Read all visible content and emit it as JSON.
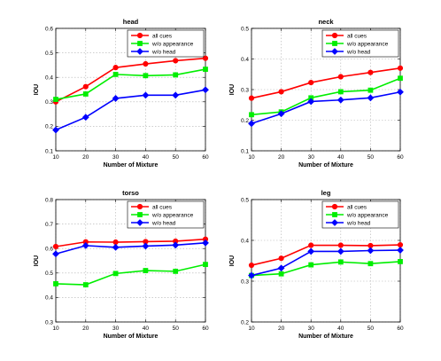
{
  "chart_data": [
    {
      "type": "line",
      "title": "head",
      "xlabel": "Number of Mixture",
      "ylabel": "IOU",
      "x": [
        10,
        20,
        30,
        40,
        50,
        60
      ],
      "xlim": [
        10,
        60
      ],
      "ylim": [
        0.1,
        0.6
      ],
      "xticks": [
        "10",
        "20",
        "30",
        "40",
        "50",
        "60"
      ],
      "yticks": [
        "0.1",
        "0.2",
        "0.3",
        "0.4",
        "0.5",
        "0.6"
      ],
      "grid": true,
      "legend_position": "top-right",
      "series": [
        {
          "name": "all cues",
          "color": "#ff0000",
          "marker": "circle",
          "values": [
            0.3,
            0.362,
            0.44,
            0.455,
            0.468,
            0.478
          ]
        },
        {
          "name": "w/o appearance",
          "color": "#00ee00",
          "marker": "square",
          "values": [
            0.31,
            0.332,
            0.412,
            0.407,
            0.41,
            0.433
          ]
        },
        {
          "name": "w/o head",
          "color": "#0000ff",
          "marker": "diamond",
          "values": [
            0.185,
            0.237,
            0.314,
            0.327,
            0.327,
            0.349
          ]
        }
      ]
    },
    {
      "type": "line",
      "title": "neck",
      "xlabel": "Number of Mixture",
      "ylabel": "IOU",
      "x": [
        10,
        20,
        30,
        40,
        50,
        60
      ],
      "xlim": [
        10,
        60
      ],
      "ylim": [
        0.1,
        0.5
      ],
      "xticks": [
        "10",
        "20",
        "30",
        "40",
        "50",
        "60"
      ],
      "yticks": [
        "0.1",
        "0.2",
        "0.3",
        "0.4",
        "0.5"
      ],
      "grid": true,
      "legend_position": "top-right",
      "series": [
        {
          "name": "all cues",
          "color": "#ff0000",
          "marker": "circle",
          "values": [
            0.272,
            0.293,
            0.323,
            0.342,
            0.356,
            0.37
          ]
        },
        {
          "name": "w/o appearance",
          "color": "#00ee00",
          "marker": "square",
          "values": [
            0.218,
            0.227,
            0.273,
            0.293,
            0.298,
            0.337
          ]
        },
        {
          "name": "w/o head",
          "color": "#0000ff",
          "marker": "diamond",
          "values": [
            0.189,
            0.221,
            0.261,
            0.266,
            0.273,
            0.292
          ]
        }
      ]
    },
    {
      "type": "line",
      "title": "torso",
      "xlabel": "Number of Mixture",
      "ylabel": "IOU",
      "x": [
        10,
        20,
        30,
        40,
        50,
        60
      ],
      "xlim": [
        10,
        60
      ],
      "ylim": [
        0.3,
        0.8
      ],
      "xticks": [
        "10",
        "20",
        "30",
        "40",
        "50",
        "60"
      ],
      "yticks": [
        "0.3",
        "0.4",
        "0.5",
        "0.6",
        "0.7",
        "0.8"
      ],
      "grid": true,
      "legend_position": "top-right",
      "series": [
        {
          "name": "all cues",
          "color": "#ff0000",
          "marker": "circle",
          "values": [
            0.608,
            0.627,
            0.626,
            0.628,
            0.63,
            0.638
          ]
        },
        {
          "name": "w/o appearance",
          "color": "#00ee00",
          "marker": "square",
          "values": [
            0.456,
            0.452,
            0.498,
            0.51,
            0.507,
            0.535
          ]
        },
        {
          "name": "w/o head",
          "color": "#0000ff",
          "marker": "diamond",
          "values": [
            0.578,
            0.612,
            0.605,
            0.61,
            0.614,
            0.623
          ]
        }
      ]
    },
    {
      "type": "line",
      "title": "leg",
      "xlabel": "Number of Mixture",
      "ylabel": "IOU",
      "x": [
        10,
        20,
        30,
        40,
        50,
        60
      ],
      "xlim": [
        10,
        60
      ],
      "ylim": [
        0.2,
        0.5
      ],
      "xticks": [
        "10",
        "20",
        "30",
        "40",
        "50",
        "60"
      ],
      "yticks": [
        "0.2",
        "0.3",
        "0.4",
        "0.5"
      ],
      "grid": true,
      "legend_position": "top-right",
      "series": [
        {
          "name": "all cues",
          "color": "#ff0000",
          "marker": "circle",
          "values": [
            0.339,
            0.356,
            0.388,
            0.388,
            0.387,
            0.389
          ]
        },
        {
          "name": "w/o appearance",
          "color": "#00ee00",
          "marker": "square",
          "values": [
            0.314,
            0.318,
            0.34,
            0.347,
            0.343,
            0.348
          ]
        },
        {
          "name": "w/o head",
          "color": "#0000ff",
          "marker": "diamond",
          "values": [
            0.314,
            0.332,
            0.373,
            0.373,
            0.375,
            0.376
          ]
        }
      ]
    }
  ]
}
